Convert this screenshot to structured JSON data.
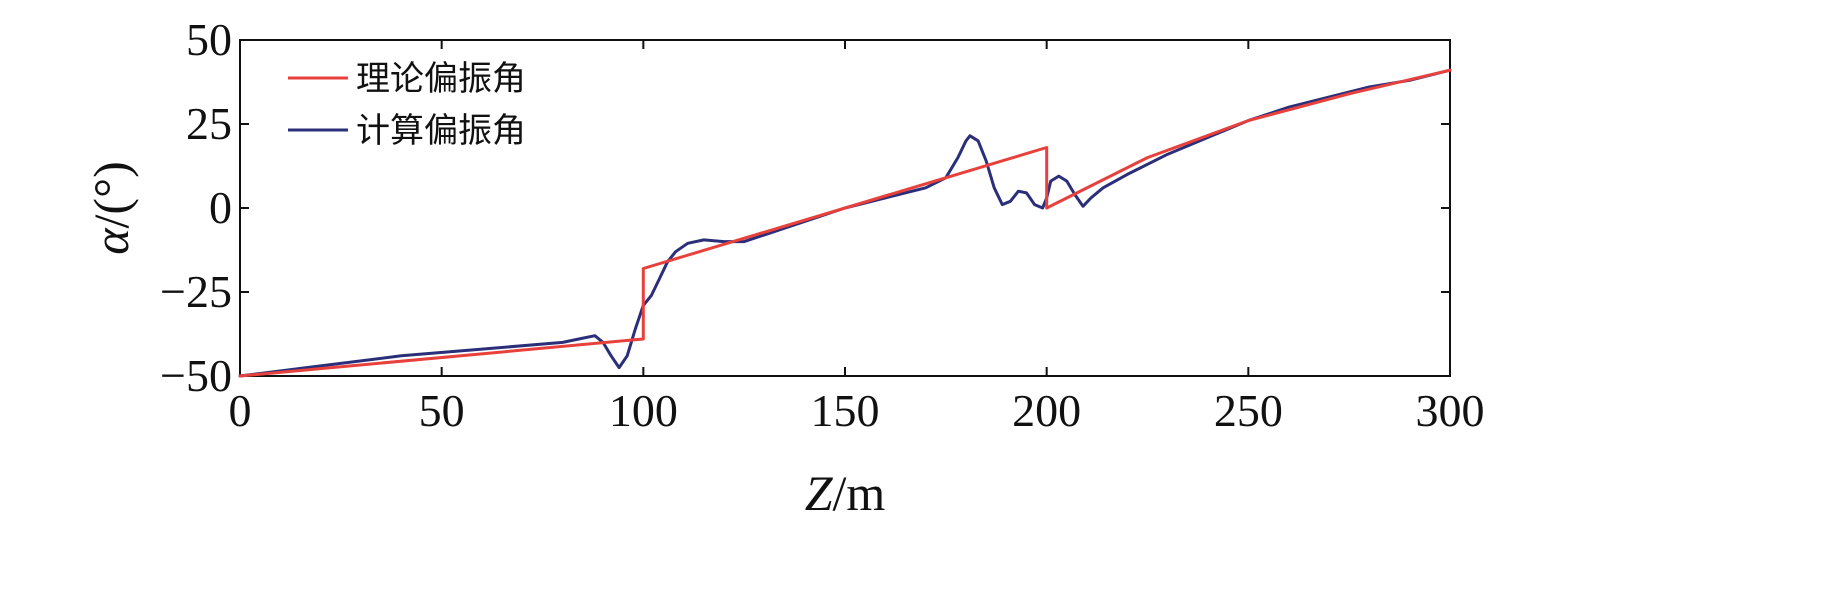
{
  "chart_data": {
    "type": "line",
    "xlabel": "Z/m",
    "xlabel_italic": "Z",
    "xlabel_rest": "/m",
    "ylabel": "α/(°)",
    "ylabel_italic": "α",
    "ylabel_rest": "/(°)",
    "xlim": [
      0,
      300
    ],
    "ylim": [
      -50,
      50
    ],
    "xticks": [
      0,
      50,
      100,
      150,
      200,
      250,
      300
    ],
    "yticks": [
      -50,
      -25,
      0,
      25,
      50
    ],
    "xtick_labels": [
      "0",
      "50",
      "100",
      "150",
      "200",
      "250",
      "300"
    ],
    "ytick_labels": [
      "−50",
      "−25",
      "0",
      "25",
      "50"
    ],
    "grid": false,
    "legend_position": "top-left",
    "series": [
      {
        "name": "理论偏振角",
        "color": "#e8413c",
        "points": [
          [
            0,
            -50
          ],
          [
            100,
            -39
          ],
          [
            100,
            -18
          ],
          [
            200,
            18
          ],
          [
            200,
            0
          ],
          [
            225,
            15
          ],
          [
            250,
            26
          ],
          [
            275,
            34
          ],
          [
            300,
            41
          ]
        ]
      },
      {
        "name": "计算偏振角",
        "color": "#2b2f7a",
        "points": [
          [
            0,
            -50
          ],
          [
            20,
            -47
          ],
          [
            40,
            -44
          ],
          [
            60,
            -42
          ],
          [
            80,
            -40
          ],
          [
            84,
            -39
          ],
          [
            88,
            -38
          ],
          [
            90,
            -40
          ],
          [
            92,
            -44
          ],
          [
            94,
            -47.5
          ],
          [
            96,
            -44
          ],
          [
            98,
            -36
          ],
          [
            100,
            -29
          ],
          [
            102,
            -26
          ],
          [
            104,
            -21
          ],
          [
            106,
            -16
          ],
          [
            108,
            -13
          ],
          [
            111,
            -10.5
          ],
          [
            115,
            -9.5
          ],
          [
            120,
            -10
          ],
          [
            125,
            -10
          ],
          [
            130,
            -8
          ],
          [
            140,
            -4
          ],
          [
            150,
            0
          ],
          [
            160,
            3
          ],
          [
            170,
            6
          ],
          [
            175,
            9
          ],
          [
            178,
            15
          ],
          [
            180,
            20
          ],
          [
            181,
            21.5
          ],
          [
            183,
            20
          ],
          [
            185,
            14
          ],
          [
            187,
            6
          ],
          [
            189,
            1
          ],
          [
            191,
            2
          ],
          [
            193,
            5
          ],
          [
            195,
            4.5
          ],
          [
            197,
            1
          ],
          [
            199,
            0
          ],
          [
            200,
            3
          ],
          [
            201,
            8
          ],
          [
            203,
            9.5
          ],
          [
            205,
            8
          ],
          [
            207,
            4
          ],
          [
            209,
            0.5
          ],
          [
            211,
            3
          ],
          [
            214,
            6
          ],
          [
            220,
            10
          ],
          [
            230,
            16
          ],
          [
            240,
            21
          ],
          [
            250,
            26
          ],
          [
            260,
            30
          ],
          [
            270,
            33
          ],
          [
            280,
            36
          ],
          [
            290,
            38
          ],
          [
            300,
            41
          ]
        ]
      }
    ]
  }
}
